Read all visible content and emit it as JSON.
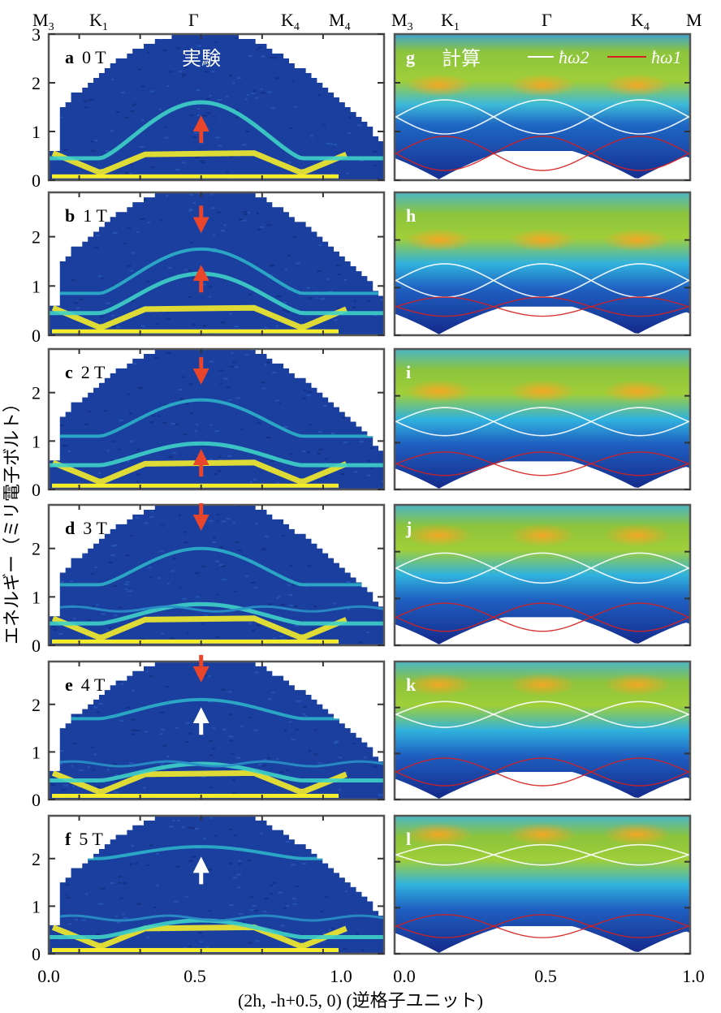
{
  "colors": {
    "exp_bg": "#1a3f9e",
    "exp_dark": "#112c7c",
    "exp_band": "#3fd2c8",
    "exp_bright": "#f5ec2a",
    "calc_top": "#8cc43c",
    "calc_mid": "#27b4e0",
    "calc_low": "#1f4bb8",
    "calc_bottom": "#152d8f",
    "calc_hot": "#f6a623",
    "arrow_red": "#e8452a",
    "arrow_white": "#ffffff",
    "curve_white": "#ffffff",
    "curve_red": "#d42020"
  },
  "top_labels": {
    "left": [
      "M3",
      "K1",
      "Γ",
      "K4",
      "M4"
    ],
    "right": [
      "M3",
      "K1",
      "Γ",
      "K4",
      "M"
    ]
  },
  "ylabel": "エネルギー（ミリ電子ボルト）",
  "xlabel": "(2h, -h+0.5, 0) (逆格子ユニット)",
  "left_xticks": [
    "0.0",
    "0.5",
    "1.0"
  ],
  "right_xticks": [
    "0.0",
    "0.5",
    "1.0"
  ],
  "yticks_top": [
    "0",
    "1",
    "2",
    "3"
  ],
  "yticks": [
    "0",
    "1",
    "2"
  ],
  "exp_title": "実験",
  "calc_title": "計算",
  "legend": {
    "white": "ħω2",
    "red": "ħω1"
  },
  "panels_left": [
    {
      "letter": "a",
      "field": "0 T"
    },
    {
      "letter": "b",
      "field": "1 T"
    },
    {
      "letter": "c",
      "field": "2 T"
    },
    {
      "letter": "d",
      "field": "3 T"
    },
    {
      "letter": "e",
      "field": "4 T"
    },
    {
      "letter": "f",
      "field": "5 T"
    }
  ],
  "panels_right": [
    "g",
    "h",
    "i",
    "j",
    "k",
    "l"
  ],
  "chart_data": [
    {
      "type": "heatmap",
      "title": "実験",
      "xlabel": "(2h, -h+0.5, 0) (逆格子ユニット)",
      "ylabel": "エネルギー（ミリ電子ボルト）",
      "xlim": [
        0,
        1.1
      ],
      "ylim": [
        0,
        3
      ],
      "fields_T": [
        0,
        1,
        2,
        3,
        4,
        5
      ],
      "arrow_energies_meV": {
        "0 T": [
          1.0
        ],
        "1 T": [
          2.4,
          1.1
        ],
        "2 T": [
          2.5,
          0.5
        ],
        "3 T": [
          2.7
        ],
        "4 T": [
          2.8,
          1.6
        ],
        "5 T": [
          1.7
        ]
      }
    },
    {
      "type": "heatmap",
      "title": "計算",
      "xlabel": "(2h, -h+0.5, 0) (逆格子ユニット)",
      "xlim": [
        0,
        1
      ],
      "ylim": [
        0,
        3
      ],
      "legend": [
        "ħω2",
        "ħω1"
      ],
      "legend_position": "top"
    }
  ]
}
